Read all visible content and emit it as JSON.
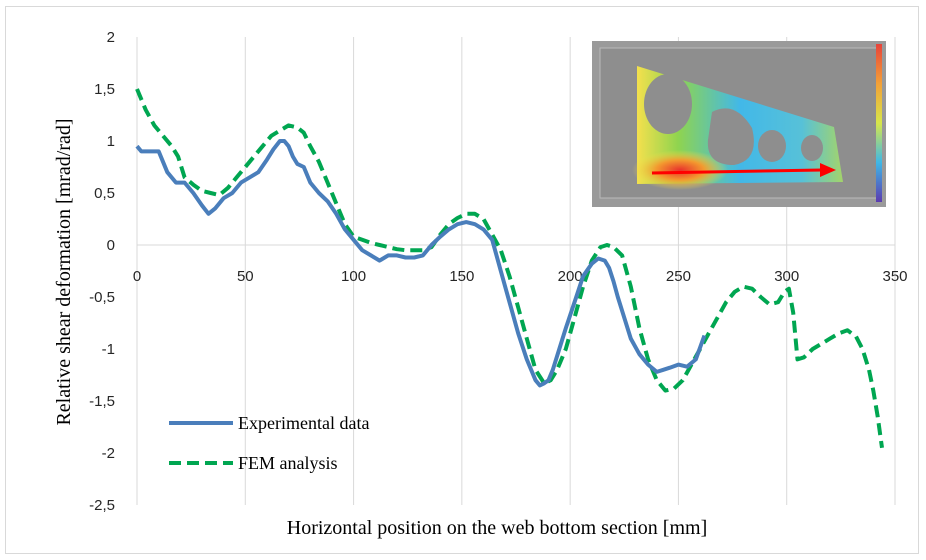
{
  "chart_data": {
    "type": "line",
    "xlabel": "Horizontal position on the web bottom section [mm]",
    "ylabel": "Relative shear deformation [mrad/rad]",
    "xlim": [
      0,
      350
    ],
    "ylim": [
      -2.5,
      2
    ],
    "x_ticks": [
      "0",
      "50",
      "100",
      "150",
      "200",
      "250",
      "300",
      "350"
    ],
    "y_ticks": [
      "2",
      "1,5",
      "1",
      "0,5",
      "0",
      "-0,5",
      "-1",
      "-1,5",
      "-2",
      "-2,5"
    ],
    "grid": "vertical",
    "legend_position": "bottom-left",
    "series": [
      {
        "name": "Experimental data",
        "color": "#4a7ebb",
        "style": "solid",
        "x": [
          0,
          2,
          6,
          10,
          14,
          18,
          22,
          26,
          30,
          33,
          36,
          40,
          44,
          48,
          52,
          56,
          60,
          63,
          66,
          68,
          70,
          72,
          74,
          77,
          80,
          84,
          88,
          92,
          96,
          100,
          104,
          108,
          112,
          116,
          120,
          124,
          128,
          132,
          136,
          140,
          144,
          148,
          152,
          156,
          160,
          164,
          168,
          172,
          176,
          180,
          184,
          186,
          188,
          190,
          192,
          195,
          198,
          202,
          206,
          210,
          213,
          216,
          218,
          220,
          222,
          225,
          228,
          232,
          236,
          240,
          243,
          246,
          250,
          254,
          258,
          262
        ],
        "y": [
          0.95,
          0.9,
          0.9,
          0.9,
          0.7,
          0.6,
          0.6,
          0.5,
          0.38,
          0.3,
          0.35,
          0.45,
          0.5,
          0.6,
          0.65,
          0.7,
          0.82,
          0.92,
          1.0,
          1.0,
          0.95,
          0.85,
          0.78,
          0.75,
          0.6,
          0.5,
          0.42,
          0.3,
          0.15,
          0.05,
          -0.05,
          -0.1,
          -0.15,
          -0.1,
          -0.1,
          -0.12,
          -0.12,
          -0.1,
          0.0,
          0.08,
          0.15,
          0.2,
          0.22,
          0.2,
          0.15,
          0.05,
          -0.25,
          -0.55,
          -0.85,
          -1.1,
          -1.3,
          -1.35,
          -1.33,
          -1.3,
          -1.2,
          -1.0,
          -0.8,
          -0.55,
          -0.3,
          -0.18,
          -0.13,
          -0.15,
          -0.22,
          -0.35,
          -0.5,
          -0.7,
          -0.9,
          -1.05,
          -1.15,
          -1.22,
          -1.2,
          -1.18,
          -1.15,
          -1.17,
          -1.1,
          -0.87
        ]
      },
      {
        "name": "FEM analysis",
        "color": "#00a651",
        "style": "dashed",
        "x": [
          0,
          4,
          8,
          12,
          16,
          19,
          22,
          26,
          30,
          34,
          38,
          42,
          46,
          50,
          54,
          58,
          62,
          66,
          70,
          74,
          77,
          80,
          84,
          88,
          92,
          96,
          100,
          104,
          108,
          112,
          116,
          120,
          124,
          128,
          132,
          136,
          140,
          144,
          148,
          152,
          156,
          160,
          164,
          168,
          172,
          176,
          180,
          184,
          188,
          191,
          194,
          198,
          202,
          206,
          210,
          214,
          217,
          220,
          224,
          228,
          232,
          236,
          240,
          244,
          248,
          252,
          256,
          260,
          264,
          268,
          272,
          276,
          280,
          284,
          288,
          292,
          296,
          299,
          301,
          303,
          305,
          308,
          312,
          316,
          320,
          324,
          328,
          332,
          335,
          338,
          340,
          342,
          344
        ],
        "y": [
          1.5,
          1.3,
          1.15,
          1.05,
          0.95,
          0.85,
          0.65,
          0.58,
          0.52,
          0.5,
          0.48,
          0.55,
          0.65,
          0.75,
          0.85,
          0.95,
          1.05,
          1.1,
          1.15,
          1.13,
          1.08,
          0.95,
          0.8,
          0.6,
          0.4,
          0.2,
          0.08,
          0.05,
          0.02,
          0.0,
          -0.02,
          -0.04,
          -0.05,
          -0.05,
          -0.05,
          -0.02,
          0.1,
          0.2,
          0.26,
          0.3,
          0.3,
          0.25,
          0.1,
          -0.05,
          -0.3,
          -0.6,
          -0.9,
          -1.2,
          -1.33,
          -1.3,
          -1.2,
          -1.0,
          -0.7,
          -0.4,
          -0.15,
          -0.02,
          0.0,
          -0.02,
          -0.1,
          -0.4,
          -0.8,
          -1.1,
          -1.3,
          -1.4,
          -1.38,
          -1.3,
          -1.15,
          -1.0,
          -0.85,
          -0.7,
          -0.55,
          -0.45,
          -0.4,
          -0.42,
          -0.5,
          -0.57,
          -0.55,
          -0.45,
          -0.42,
          -0.65,
          -1.1,
          -1.08,
          -1.0,
          -0.95,
          -0.9,
          -0.85,
          -0.82,
          -0.88,
          -1.0,
          -1.2,
          -1.4,
          -1.65,
          -1.95
        ]
      }
    ]
  },
  "inset": {
    "description": "strain-field thumbnail with measurement arrow",
    "arrow_color": "#ff0000"
  }
}
